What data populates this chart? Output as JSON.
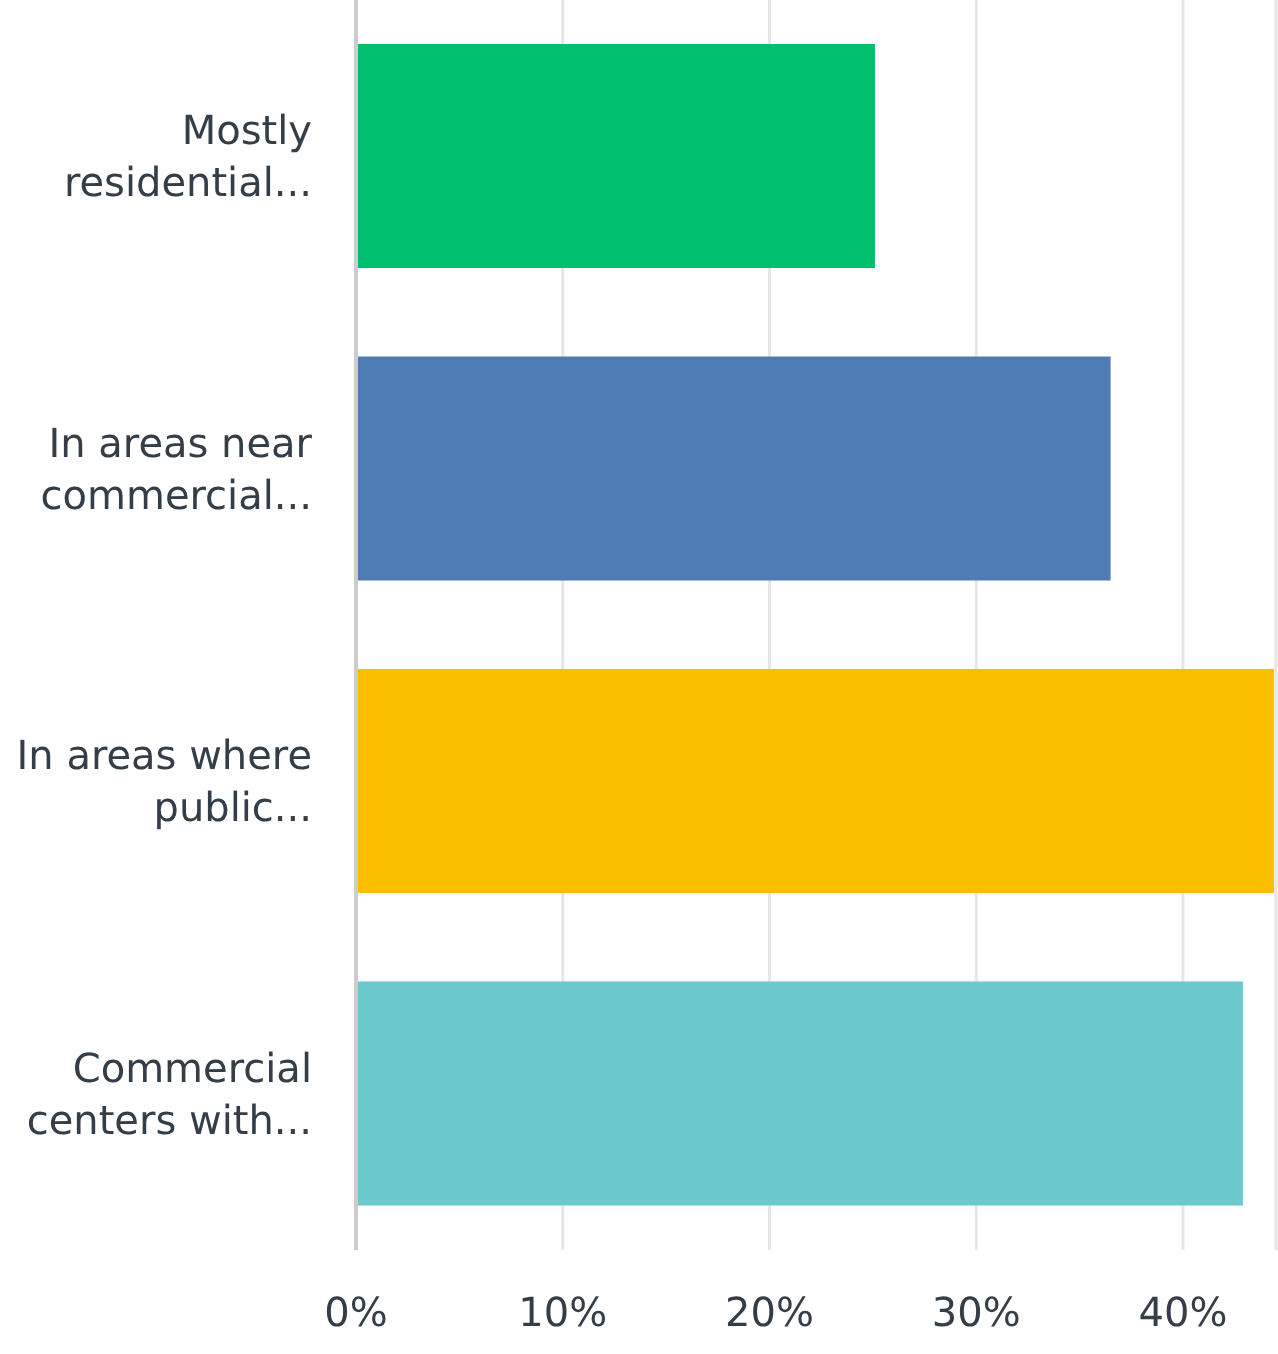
{
  "chart_data": {
    "type": "bar",
    "orientation": "horizontal",
    "categories": [
      "Mostly residential...",
      "In areas near commercial...",
      "In areas where public...",
      "Commercial centers with..."
    ],
    "values": [
      25.1,
      36.5,
      44.4,
      42.9
    ],
    "colors": [
      "#00bf6f",
      "#507cb6",
      "#f9be00",
      "#6bc8cd"
    ],
    "xlim": [
      0,
      44.5
    ],
    "xticks": [
      {
        "value": 0,
        "label": "0%"
      },
      {
        "value": 10,
        "label": "10%"
      },
      {
        "value": 20,
        "label": "20%"
      },
      {
        "value": 30,
        "label": "30%"
      },
      {
        "value": 40,
        "label": "40%"
      }
    ],
    "grid": "x"
  }
}
